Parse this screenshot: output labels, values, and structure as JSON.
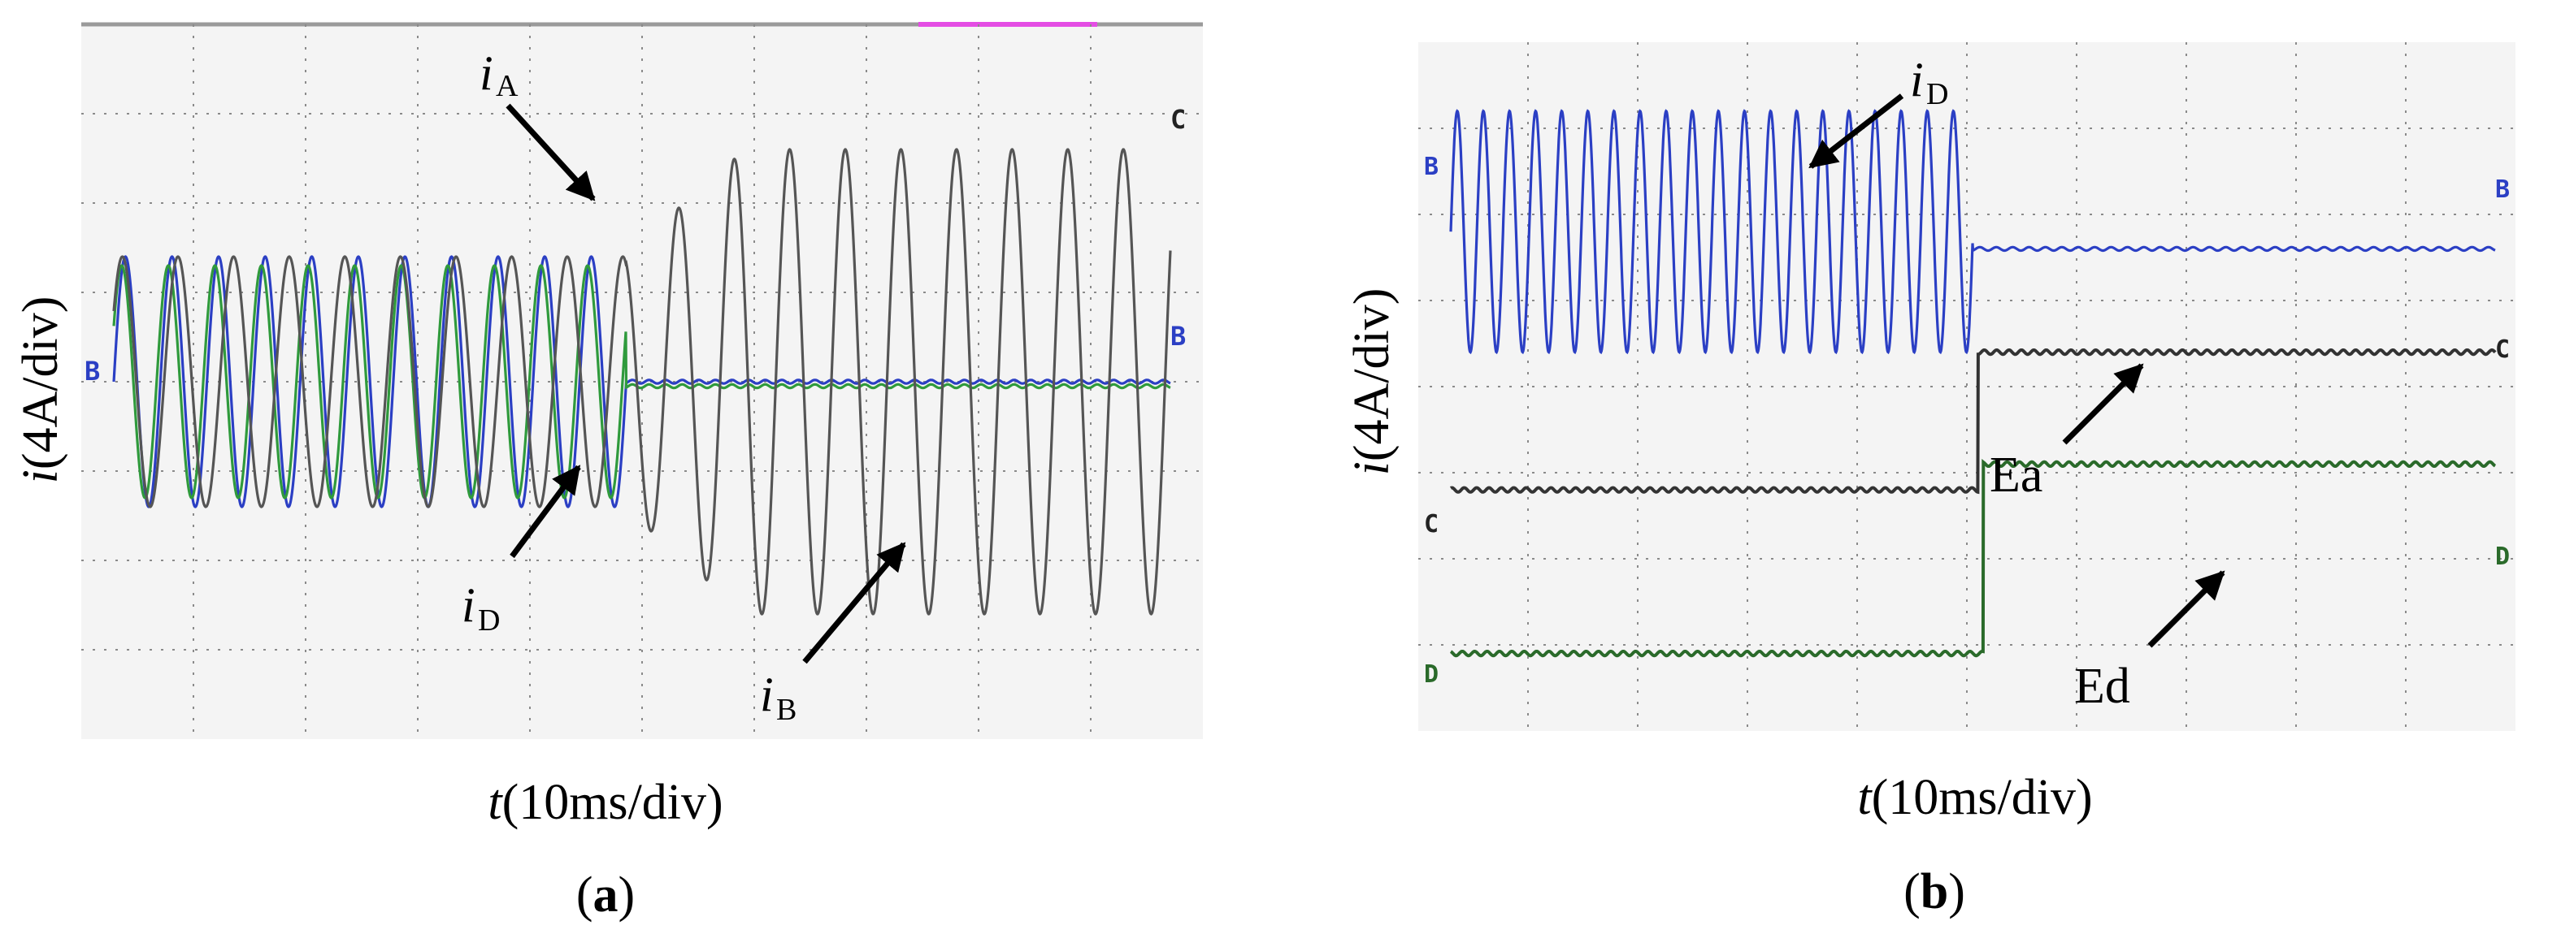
{
  "chart_data": [
    {
      "panel": "(a)",
      "type": "line",
      "ylabel": "i(4A/div)",
      "xlabel": "t(10ms/div)",
      "divisions": {
        "x": 10,
        "y": 8
      },
      "xlim": [
        0,
        10
      ],
      "ylim": [
        -4,
        4
      ],
      "grid": true,
      "channel_markers": {
        "left": "B",
        "right": [
          "C",
          "B"
        ]
      },
      "series": [
        {
          "name": "iA",
          "color": "#2b3fc4",
          "waveform": "sine",
          "amplitude_div": 1.4,
          "offset_div": 0.0,
          "cycles_before_step": 11,
          "step_time_div": 4.85,
          "level_after_step_div": 0.0
        },
        {
          "name": "iD",
          "color": "#2f9a3c",
          "waveform": "sine",
          "amplitude_div": 1.3,
          "offset_div": 0.0,
          "cycles_before_step": 11,
          "step_time_div": 4.85,
          "level_after_step_div": -0.05
        },
        {
          "name": "iB",
          "color": "#555555",
          "waveform": "sine",
          "amplitude_div": 1.4,
          "amplitude_after_div": 2.6,
          "offset_div": 0.0,
          "cycles_total": 19,
          "step_time_div": 4.85
        }
      ],
      "annotations": [
        {
          "text": "i",
          "sub": "A"
        },
        {
          "text": "i",
          "sub": "D"
        },
        {
          "text": "i",
          "sub": "B"
        }
      ]
    },
    {
      "panel": "(b)",
      "type": "line",
      "ylabel": "i(4A/div)",
      "xlabel": "t(10ms/div)",
      "divisions": {
        "x": 10,
        "y": 8
      },
      "xlim": [
        0,
        10
      ],
      "ylim": [
        -4,
        4
      ],
      "grid": true,
      "channel_markers": {
        "left": [
          "B",
          "C",
          "D"
        ],
        "right": [
          "B",
          "C",
          "D"
        ]
      },
      "series": [
        {
          "name": "iD",
          "color": "#2b3fc4",
          "waveform": "sine",
          "amplitude_div": 1.4,
          "offset_div": 1.8,
          "cycles_before_step": 20,
          "step_time_div": 5.0,
          "level_after_step_div": 1.6
        },
        {
          "name": "Ea",
          "color": "#333333",
          "waveform": "step",
          "level_before_div": -1.2,
          "level_after_div": 0.4,
          "step_time_div": 5.05
        },
        {
          "name": "Ed",
          "color": "#2a6a2a",
          "waveform": "step",
          "level_before_div": -3.1,
          "level_after_div": -0.9,
          "step_time_div": 5.1
        }
      ],
      "annotations": [
        {
          "text": "i",
          "sub": "D"
        },
        {
          "text": "Ea"
        },
        {
          "text": "Ed"
        }
      ]
    }
  ],
  "captions": {
    "a": "(a)",
    "b": "(b)"
  },
  "text": {
    "a_ylabel_i": "i",
    "a_ylabel_rest": "(4A/div)",
    "a_xlabel_t": "t",
    "a_xlabel_rest": "(10ms/div)",
    "b_ylabel_i": "i",
    "b_ylabel_rest": "(4A/div)",
    "b_xlabel_t": "t",
    "b_xlabel_rest": "(10ms/div)",
    "a_cap_open": "(",
    "a_cap_letter": "a",
    "a_cap_close": ")",
    "b_cap_open": "(",
    "b_cap_letter": "b",
    "b_cap_close": ")",
    "ann_iA_main": "i",
    "ann_iA_sub": "A",
    "ann_iD_main": "i",
    "ann_iD_sub": "D",
    "ann_iB_main": "i",
    "ann_iB_sub": "B",
    "ann_b_iD_main": "i",
    "ann_b_iD_sub": "D",
    "ann_Ea": "Ea",
    "ann_Ed": "Ed",
    "mk_a_left_B": "B",
    "mk_a_right_C": "C",
    "mk_a_right_B": "B",
    "mk_b_left_B": "B",
    "mk_b_left_C": "C",
    "mk_b_left_D": "D",
    "mk_b_right_B": "B",
    "mk_b_right_C": "C",
    "mk_b_right_D": "D"
  },
  "colors": {
    "blue": "#2b3fc4",
    "green": "#2f9a3c",
    "gray": "#555555",
    "darkgreen": "#2a6a2a",
    "grid": "#8a8a8a",
    "screen": "#f4f4f4",
    "magenta": "#e44de4"
  }
}
